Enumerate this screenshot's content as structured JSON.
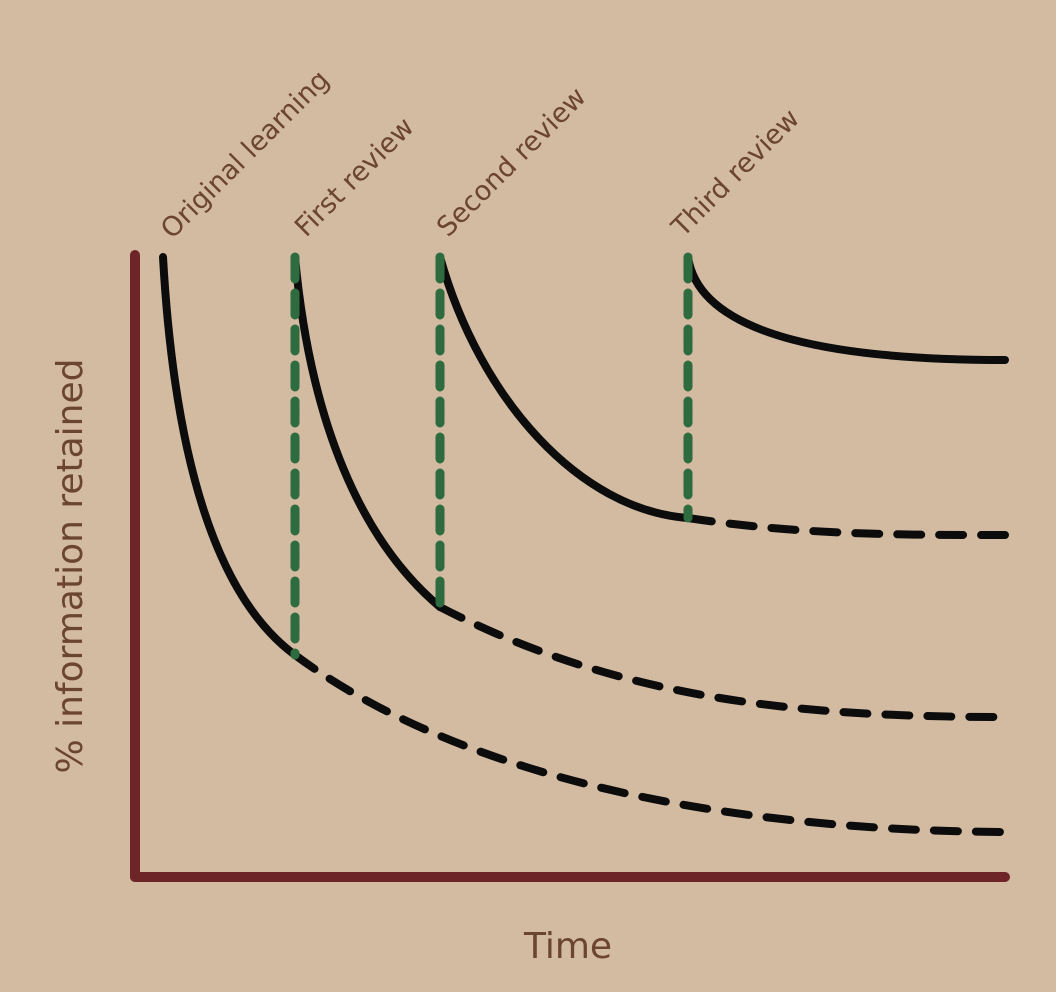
{
  "axes": {
    "y_label": "% information retained",
    "x_label": "Time"
  },
  "events": [
    "Original learning",
    "First review",
    "Second review",
    "Third review"
  ]
}
